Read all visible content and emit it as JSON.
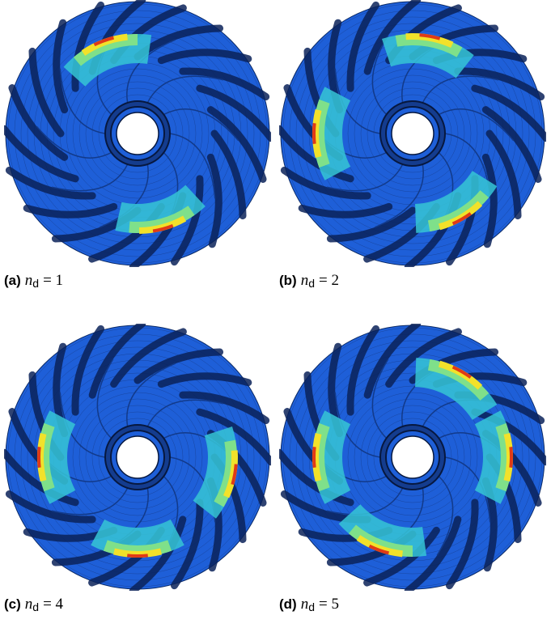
{
  "figure": {
    "panels": [
      {
        "tag": "(a)",
        "symbol": "n",
        "subscript": "d",
        "relation": "= 1"
      },
      {
        "tag": "(b)",
        "symbol": "n",
        "subscript": "d",
        "relation": "= 2"
      },
      {
        "tag": "(c)",
        "symbol": "n",
        "subscript": "d",
        "relation": "= 4"
      },
      {
        "tag": "(d)",
        "symbol": "n",
        "subscript": "d",
        "relation": "= 5"
      }
    ]
  }
}
